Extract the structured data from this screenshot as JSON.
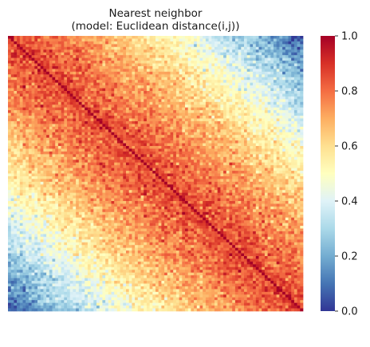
{
  "chart_data": {
    "type": "heatmap",
    "title": [
      "Nearest neighbor",
      "(model: Euclidean distance(i,j))"
    ],
    "xlabel": "",
    "ylabel": "",
    "n_rows": 100,
    "n_cols": 100,
    "diagonal_value": 1.0,
    "value_model": "similarity = 1 - normalized Euclidean distance between positions i and j on the chain; approximately 0.85 near the diagonal, about 0.45 at offset 50, about 0.1 in the far corners, with random noise of about 0.05",
    "colormap": "RdYlBu_r",
    "colormap_stops": [
      "#313695",
      "#4575b4",
      "#74add1",
      "#abd9e9",
      "#e0f3f8",
      "#ffffbf",
      "#fee090",
      "#fdae61",
      "#f46d43",
      "#d73027",
      "#a50026"
    ],
    "colorbar": {
      "ticks": [
        0.0,
        0.2,
        0.4,
        0.6,
        0.8,
        1.0
      ],
      "tick_labels": [
        "0.0",
        "0.2",
        "0.4",
        "0.6",
        "0.8",
        "1.0"
      ],
      "vmin": 0.0,
      "vmax": 1.0
    },
    "grid": false
  }
}
